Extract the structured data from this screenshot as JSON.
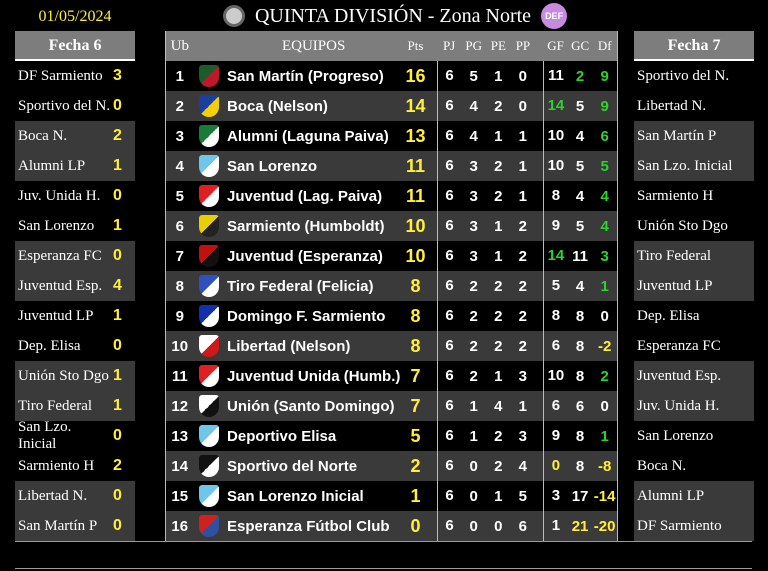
{
  "date": "01/05/2024",
  "title": "QUINTA DIVISIÓN - Zona Norte",
  "logo_right": "DEF",
  "left": {
    "header": "Fecha 6",
    "rows": [
      [
        "DF Sarmiento",
        "3"
      ],
      [
        "Sportivo del N.",
        "0"
      ],
      [
        "Boca N.",
        "2"
      ],
      [
        "Alumni LP",
        "1"
      ],
      [
        "Juv. Unida H.",
        "0"
      ],
      [
        "San Lorenzo",
        "1"
      ],
      [
        "Esperanza FC",
        "0"
      ],
      [
        "Juventud Esp.",
        "4"
      ],
      [
        "Juventud LP",
        "1"
      ],
      [
        "Dep. Elisa",
        "0"
      ],
      [
        "Unión Sto Dgo",
        "1"
      ],
      [
        "Tiro Federal",
        "1"
      ],
      [
        "San Lzo. Inicial",
        "0"
      ],
      [
        "Sarmiento H",
        "2"
      ],
      [
        "Libertad N.",
        "0"
      ],
      [
        "San Martín P",
        "0"
      ]
    ]
  },
  "right": {
    "header": "Fecha 7",
    "rows": [
      "Sportivo del N.",
      "Libertad N.",
      "San Martín P",
      "San Lzo. Inicial",
      "Sarmiento H",
      "Unión Sto Dgo",
      "Tiro Federal",
      "Juventud LP",
      "Dep. Elisa",
      "Esperanza FC",
      "Juventud Esp.",
      "Juv. Unida H.",
      "San Lorenzo",
      "Boca N.",
      "Alumni LP",
      "DF Sarmiento"
    ]
  },
  "table": {
    "headers": {
      "ub": "Ub",
      "team": "EQUIPOS",
      "pts": "Pts",
      "pj": "PJ",
      "pg": "PG",
      "pe": "PE",
      "pp": "PP",
      "gf": "GF",
      "gc": "GC",
      "df": "Df"
    },
    "colors": {
      "g": "#2ed12e",
      "y": "#ffef3a",
      "w": "#ffffff"
    },
    "rows": [
      {
        "ub": "1",
        "team": "San Martín (Progreso)",
        "pts": "16",
        "pj": "6",
        "pg": "5",
        "pe": "1",
        "pp": "0",
        "gf": "11",
        "gc": "2",
        "df": "9",
        "cl": [
          "w",
          "g",
          "g"
        ],
        "crest": [
          "#1a5c2a",
          "#c0182a"
        ]
      },
      {
        "ub": "2",
        "team": "Boca (Nelson)",
        "pts": "14",
        "pj": "6",
        "pg": "4",
        "pe": "2",
        "pp": "0",
        "gf": "14",
        "gc": "5",
        "df": "9",
        "cl": [
          "g",
          "w",
          "g"
        ],
        "crest": [
          "#1a3fa0",
          "#f5d000"
        ]
      },
      {
        "ub": "3",
        "team": "Alumni (Laguna Paiva)",
        "pts": "13",
        "pj": "6",
        "pg": "4",
        "pe": "1",
        "pp": "1",
        "gf": "10",
        "gc": "4",
        "df": "6",
        "cl": [
          "w",
          "w",
          "g"
        ],
        "crest": [
          "#1a7a3a",
          "#ffffff"
        ]
      },
      {
        "ub": "4",
        "team": "San Lorenzo",
        "pts": "11",
        "pj": "6",
        "pg": "3",
        "pe": "2",
        "pp": "1",
        "gf": "10",
        "gc": "5",
        "df": "5",
        "cl": [
          "w",
          "w",
          "g"
        ],
        "crest": [
          "#6ec6ea",
          "#ffffff"
        ]
      },
      {
        "ub": "5",
        "team": "Juventud (Lag. Paiva)",
        "pts": "11",
        "pj": "6",
        "pg": "3",
        "pe": "2",
        "pp": "1",
        "gf": "8",
        "gc": "4",
        "df": "4",
        "cl": [
          "w",
          "w",
          "g"
        ],
        "crest": [
          "#e02020",
          "#ffffff"
        ]
      },
      {
        "ub": "6",
        "team": "Sarmiento (Humboldt)",
        "pts": "10",
        "pj": "6",
        "pg": "3",
        "pe": "1",
        "pp": "2",
        "gf": "9",
        "gc": "5",
        "df": "4",
        "cl": [
          "w",
          "w",
          "g"
        ],
        "crest": [
          "#e8d000",
          "#222222"
        ]
      },
      {
        "ub": "7",
        "team": "Juventud (Esperanza)",
        "pts": "10",
        "pj": "6",
        "pg": "3",
        "pe": "1",
        "pp": "2",
        "gf": "14",
        "gc": "11",
        "df": "3",
        "cl": [
          "g",
          "w",
          "g"
        ],
        "crest": [
          "#c01010",
          "#111111"
        ]
      },
      {
        "ub": "8",
        "team": "Tiro Federal (Felicia)",
        "pts": "8",
        "pj": "6",
        "pg": "2",
        "pe": "2",
        "pp": "2",
        "gf": "5",
        "gc": "4",
        "df": "1",
        "cl": [
          "w",
          "w",
          "g"
        ],
        "crest": [
          "#3050c0",
          "#ffffff"
        ]
      },
      {
        "ub": "9",
        "team": "Domingo F. Sarmiento",
        "pts": "8",
        "pj": "6",
        "pg": "2",
        "pe": "2",
        "pp": "2",
        "gf": "8",
        "gc": "8",
        "df": "0",
        "cl": [
          "w",
          "w",
          "w"
        ],
        "crest": [
          "#1030b0",
          "#ffffff"
        ]
      },
      {
        "ub": "10",
        "team": "Libertad (Nelson)",
        "pts": "8",
        "pj": "6",
        "pg": "2",
        "pe": "2",
        "pp": "2",
        "gf": "6",
        "gc": "8",
        "df": "-2",
        "cl": [
          "w",
          "w",
          "y"
        ],
        "crest": [
          "#ffffff",
          "#d01818"
        ]
      },
      {
        "ub": "11",
        "team": "Juventud Unida (Humb.)",
        "pts": "7",
        "pj": "6",
        "pg": "2",
        "pe": "1",
        "pp": "3",
        "gf": "10",
        "gc": "8",
        "df": "2",
        "cl": [
          "w",
          "w",
          "g"
        ],
        "crest": [
          "#e02020",
          "#ffffff"
        ]
      },
      {
        "ub": "12",
        "team": "Unión (Santo Domingo)",
        "pts": "7",
        "pj": "6",
        "pg": "1",
        "pe": "4",
        "pp": "1",
        "gf": "6",
        "gc": "6",
        "df": "0",
        "cl": [
          "w",
          "w",
          "w"
        ],
        "crest": [
          "#ffffff",
          "#111111"
        ]
      },
      {
        "ub": "13",
        "team": "Deportivo Elisa",
        "pts": "5",
        "pj": "6",
        "pg": "1",
        "pe": "2",
        "pp": "3",
        "gf": "9",
        "gc": "8",
        "df": "1",
        "cl": [
          "w",
          "w",
          "g"
        ],
        "crest": [
          "#6ec6ea",
          "#ffffff"
        ]
      },
      {
        "ub": "14",
        "team": "Sportivo del Norte",
        "pts": "2",
        "pj": "6",
        "pg": "0",
        "pe": "2",
        "pp": "4",
        "gf": "0",
        "gc": "8",
        "df": "-8",
        "cl": [
          "y",
          "w",
          "y"
        ],
        "crest": [
          "#111111",
          "#ffffff"
        ]
      },
      {
        "ub": "15",
        "team": "San Lorenzo Inicial",
        "pts": "1",
        "pj": "6",
        "pg": "0",
        "pe": "1",
        "pp": "5",
        "gf": "3",
        "gc": "17",
        "df": "-14",
        "cl": [
          "w",
          "w",
          "y"
        ],
        "crest": [
          "#6ec6ea",
          "#ffffff"
        ]
      },
      {
        "ub": "16",
        "team": "Esperanza Fútbol Club",
        "pts": "0",
        "pj": "6",
        "pg": "0",
        "pe": "0",
        "pp": "6",
        "gf": "1",
        "gc": "21",
        "df": "-20",
        "cl": [
          "w",
          "y",
          "y"
        ],
        "crest": [
          "#d02020",
          "#3050a0"
        ]
      }
    ]
  }
}
